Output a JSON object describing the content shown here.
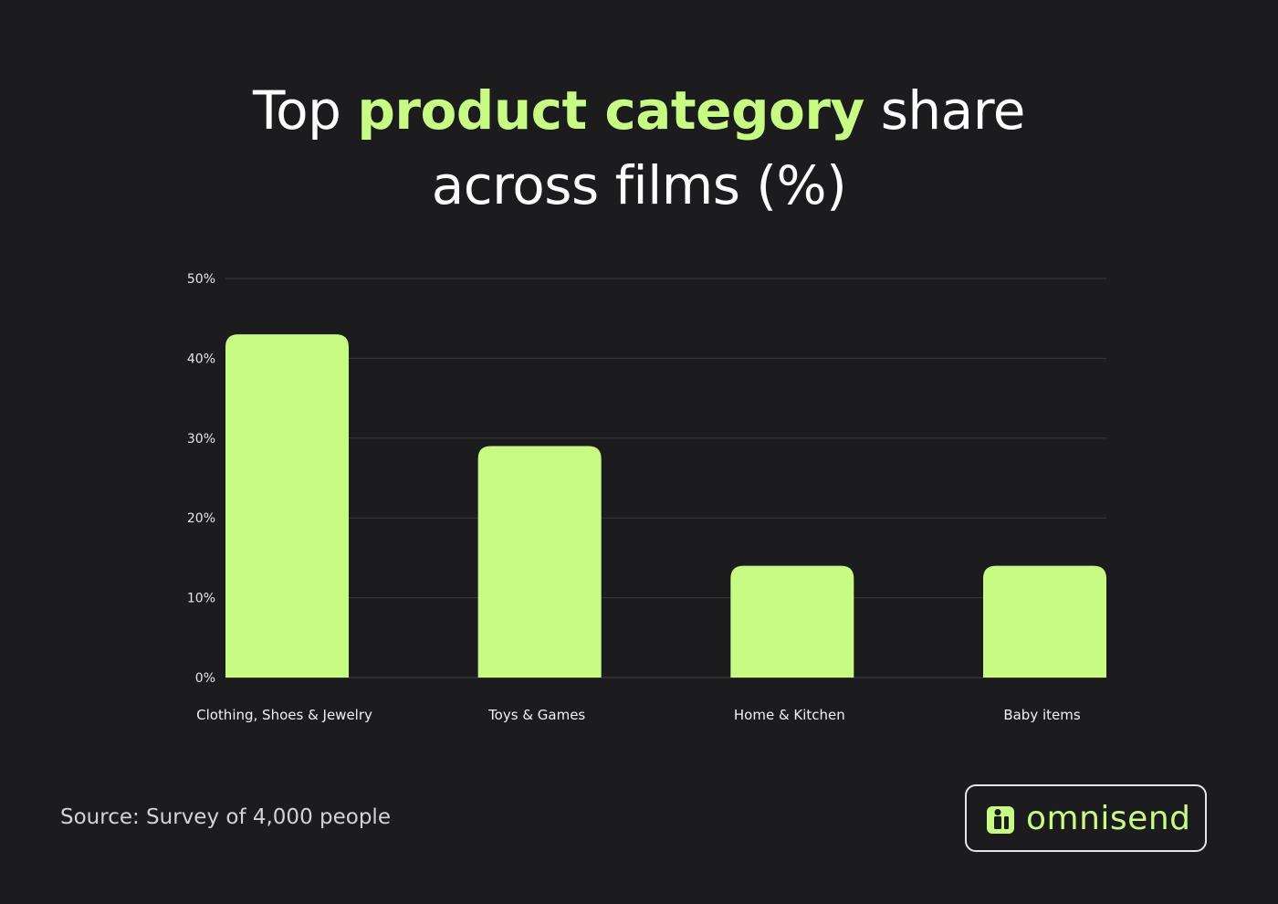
{
  "title": {
    "part1": "Top ",
    "highlight": "product category",
    "part2": " share across films (%)"
  },
  "source": "Source: Survey of 4,000 people",
  "brand": {
    "name": "omnisend"
  },
  "colors": {
    "background": "#1c1b1d",
    "bar": "#c8fb84",
    "accent": "#c8fb84",
    "grid": "#3a393c",
    "text": "#ffffff"
  },
  "chart_data": {
    "type": "bar",
    "title": "Top product category share across films (%)",
    "categories": [
      "Clothing, Shoes & Jewelry",
      "Toys & Games",
      "Home & Kitchen",
      "Baby items"
    ],
    "values": [
      43,
      29,
      14,
      14
    ],
    "yticks": [
      "0%",
      "10%",
      "20%",
      "30%",
      "40%",
      "50%"
    ],
    "ylim": [
      0,
      50
    ],
    "xlabel": "",
    "ylabel": "",
    "grid": true,
    "legend": "none"
  }
}
